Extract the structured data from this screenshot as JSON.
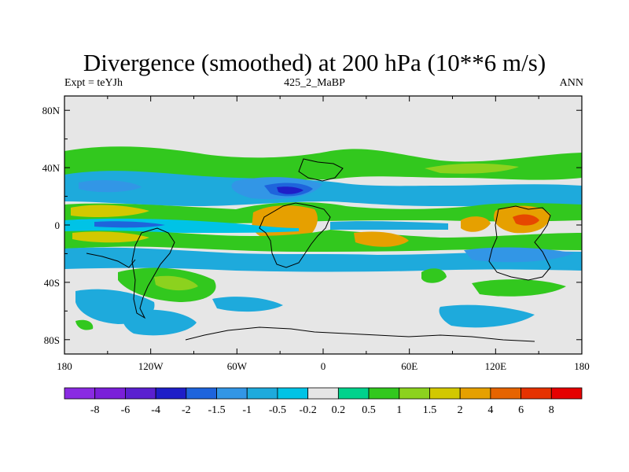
{
  "chart_data": {
    "type": "heatmap",
    "title": "Divergence (smoothed) at 200 hPa (10**6 m/s)",
    "left_label": "Expt = teYJh",
    "center_label": "425_2_MaBP",
    "right_label": "ANN",
    "x_ticks": [
      {
        "value": -180,
        "label": "180"
      },
      {
        "value": -120,
        "label": "120W"
      },
      {
        "value": -60,
        "label": "60W"
      },
      {
        "value": 0,
        "label": "0"
      },
      {
        "value": 60,
        "label": "60E"
      },
      {
        "value": 120,
        "label": "120E"
      },
      {
        "value": 180,
        "label": "180"
      }
    ],
    "y_ticks": [
      {
        "value": 80,
        "label": "80N"
      },
      {
        "value": 40,
        "label": "40N"
      },
      {
        "value": 0,
        "label": "0"
      },
      {
        "value": -40,
        "label": "40S"
      },
      {
        "value": -80,
        "label": "80S"
      }
    ],
    "xlim": [
      -180,
      180
    ],
    "ylim": [
      -90,
      90
    ],
    "colorbar": {
      "levels": [
        "-8",
        "-6",
        "-4",
        "-2",
        "-1.5",
        "-1",
        "-0.5",
        "-0.2",
        "0.2",
        "0.5",
        "1",
        "1.5",
        "2",
        "4",
        "6",
        "8"
      ],
      "colors": [
        "#8a2be2",
        "#7a1fd9",
        "#5a20d0",
        "#1e1ec8",
        "#1e64dc",
        "#3296e6",
        "#1eaadc",
        "#00c3e6",
        "#e6e6e6",
        "#00d28c",
        "#32c81e",
        "#8cd21e",
        "#d2c800",
        "#e6a000",
        "#e66400",
        "#e63200",
        "#e60000"
      ]
    },
    "fields": [
      {
        "lon": -150,
        "lat": 28,
        "value": -1.2
      },
      {
        "lon": -20,
        "lat": 29,
        "value": -1.8
      },
      {
        "lon": -130,
        "lat": 40,
        "value": 0.6
      },
      {
        "lon": 60,
        "lat": 43,
        "value": 0.7
      },
      {
        "lon": 150,
        "lat": 42,
        "value": 0.8
      },
      {
        "lon": -150,
        "lat": 10,
        "value": 1.4
      },
      {
        "lon": -30,
        "lat": 6,
        "value": 2.5
      },
      {
        "lon": 135,
        "lat": 2,
        "value": 3.2
      },
      {
        "lon": 95,
        "lat": 2,
        "value": 2.2
      },
      {
        "lon": -140,
        "lat": 1,
        "value": -1.6
      },
      {
        "lon": -150,
        "lat": -7,
        "value": 1.5
      },
      {
        "lon": 30,
        "lat": -9,
        "value": 2.1
      },
      {
        "lon": -80,
        "lat": -16,
        "value": -0.8
      },
      {
        "lon": 120,
        "lat": -16,
        "value": -1.1
      },
      {
        "lon": -110,
        "lat": -33,
        "value": 0.9
      },
      {
        "lon": -110,
        "lat": -61,
        "value": -0.7
      },
      {
        "lon": 130,
        "lat": -60,
        "value": -0.8
      }
    ]
  }
}
